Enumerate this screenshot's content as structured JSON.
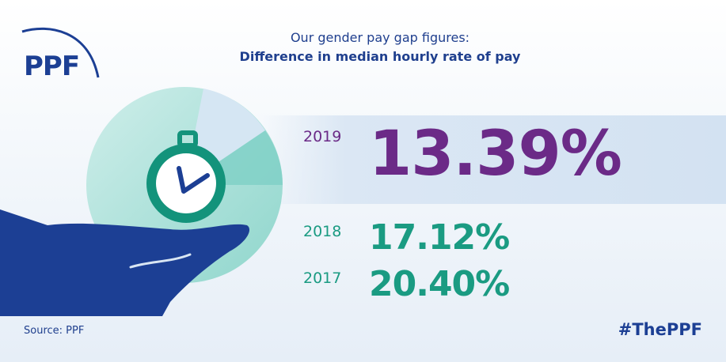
{
  "logo": {
    "text": "PPF"
  },
  "title": {
    "line1": "Our gender pay gap figures:",
    "line2": "Difference in median hourly rate of pay"
  },
  "figures": [
    {
      "year": "2019",
      "value": "13.39%"
    },
    {
      "year": "2018",
      "value": "17.12%"
    },
    {
      "year": "2017",
      "value": "20.40%"
    }
  ],
  "footer": {
    "source": "Source: PPF",
    "hashtag": "#ThePPF"
  },
  "illustration": {
    "icons": [
      "hand-icon",
      "stopwatch-icon",
      "pie-icon"
    ],
    "colors": {
      "navy": "#1c3f94",
      "teal": "#13937b",
      "pie_light": "#bfe6e0",
      "pie_teal": "#7ed0c6",
      "pie_slice": "#d5e6f3"
    }
  },
  "colors": {
    "purple": "#6b2a87",
    "teal": "#1a9b82",
    "navy": "#1f3f8e"
  }
}
